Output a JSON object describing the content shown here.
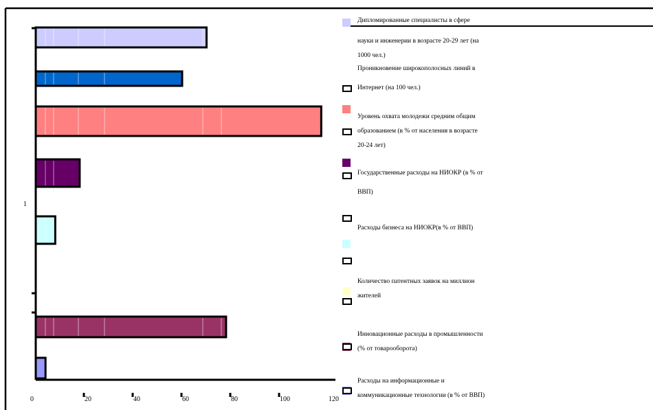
{
  "chart_data": {
    "type": "bar",
    "orientation": "horizontal",
    "title": "",
    "xlabel": "",
    "ylabel": "",
    "xlim": [
      0,
      120
    ],
    "x_ticks": [
      "0",
      "20",
      "40",
      "60",
      "80",
      "100",
      "120"
    ],
    "category_labels": [
      "1"
    ],
    "grid": false,
    "legend_position": "right",
    "series": [
      {
        "name": "Дипломированные специалисты в сфере науки и инженерии в возрасте 20-29 лет (на 1000 чел.)",
        "value": 70,
        "color": "#ccccff"
      },
      {
        "name": "Проникновение широкополосных линий в Интернет (на 100 чел.)",
        "value": 60,
        "color": "#0066cc"
      },
      {
        "name": "Уровень охвата молодежи средним общим образованием (в % от населения в возрасте 20-24 лет)",
        "value": 117,
        "color": "#ff8080"
      },
      {
        "name": "Государственные расходы на НИОКР (в % от ВВП)",
        "value": 18,
        "color": "#660066"
      },
      {
        "name": "Расходы бизнеса на НИОКР(в % от ВВП)",
        "value": 8,
        "color": "#ccffff"
      },
      {
        "name": "Количество патентных заявок на миллион жителей",
        "value": 0,
        "color": "#ffffcc"
      },
      {
        "name": "Инновационные расходы в промышленности (% от товарооборота)",
        "value": 78,
        "color": "#993366"
      },
      {
        "name": "Расходы на информационные и коммуникационные технологии (в % от ВВП)",
        "value": 4,
        "color": "#9999ff"
      }
    ]
  },
  "legend": {
    "items": [
      {
        "lines": [
          "Дипломированные специалисты в сфере",
          "науки и инженерии в возрасте 20-29 лет (на",
          "1000 чел.)"
        ]
      },
      {
        "lines": [
          "Проникновение широкополосных линий в",
          "Интернет (на 100 чел.)"
        ]
      },
      {
        "lines": [
          "Уровень охвата молодежи средним общим",
          "образованием (в % от населения в возрасте",
          "20-24 лет)"
        ]
      },
      {
        "lines": [
          "Государственные расходы на НИОКР (в % от",
          "ВВП)"
        ]
      },
      {
        "lines": [
          "Расходы бизнеса на НИОКР(в % от ВВП)"
        ]
      },
      {
        "lines": [
          "Количество патентных заявок на миллион",
          "жителей"
        ]
      },
      {
        "lines": [
          "Инновационные расходы в промышленности",
          "(% от товарооборота)"
        ]
      },
      {
        "lines": [
          "Расходы на информационные и",
          "коммуникационные технологии (в % от ВВП)"
        ]
      }
    ]
  }
}
